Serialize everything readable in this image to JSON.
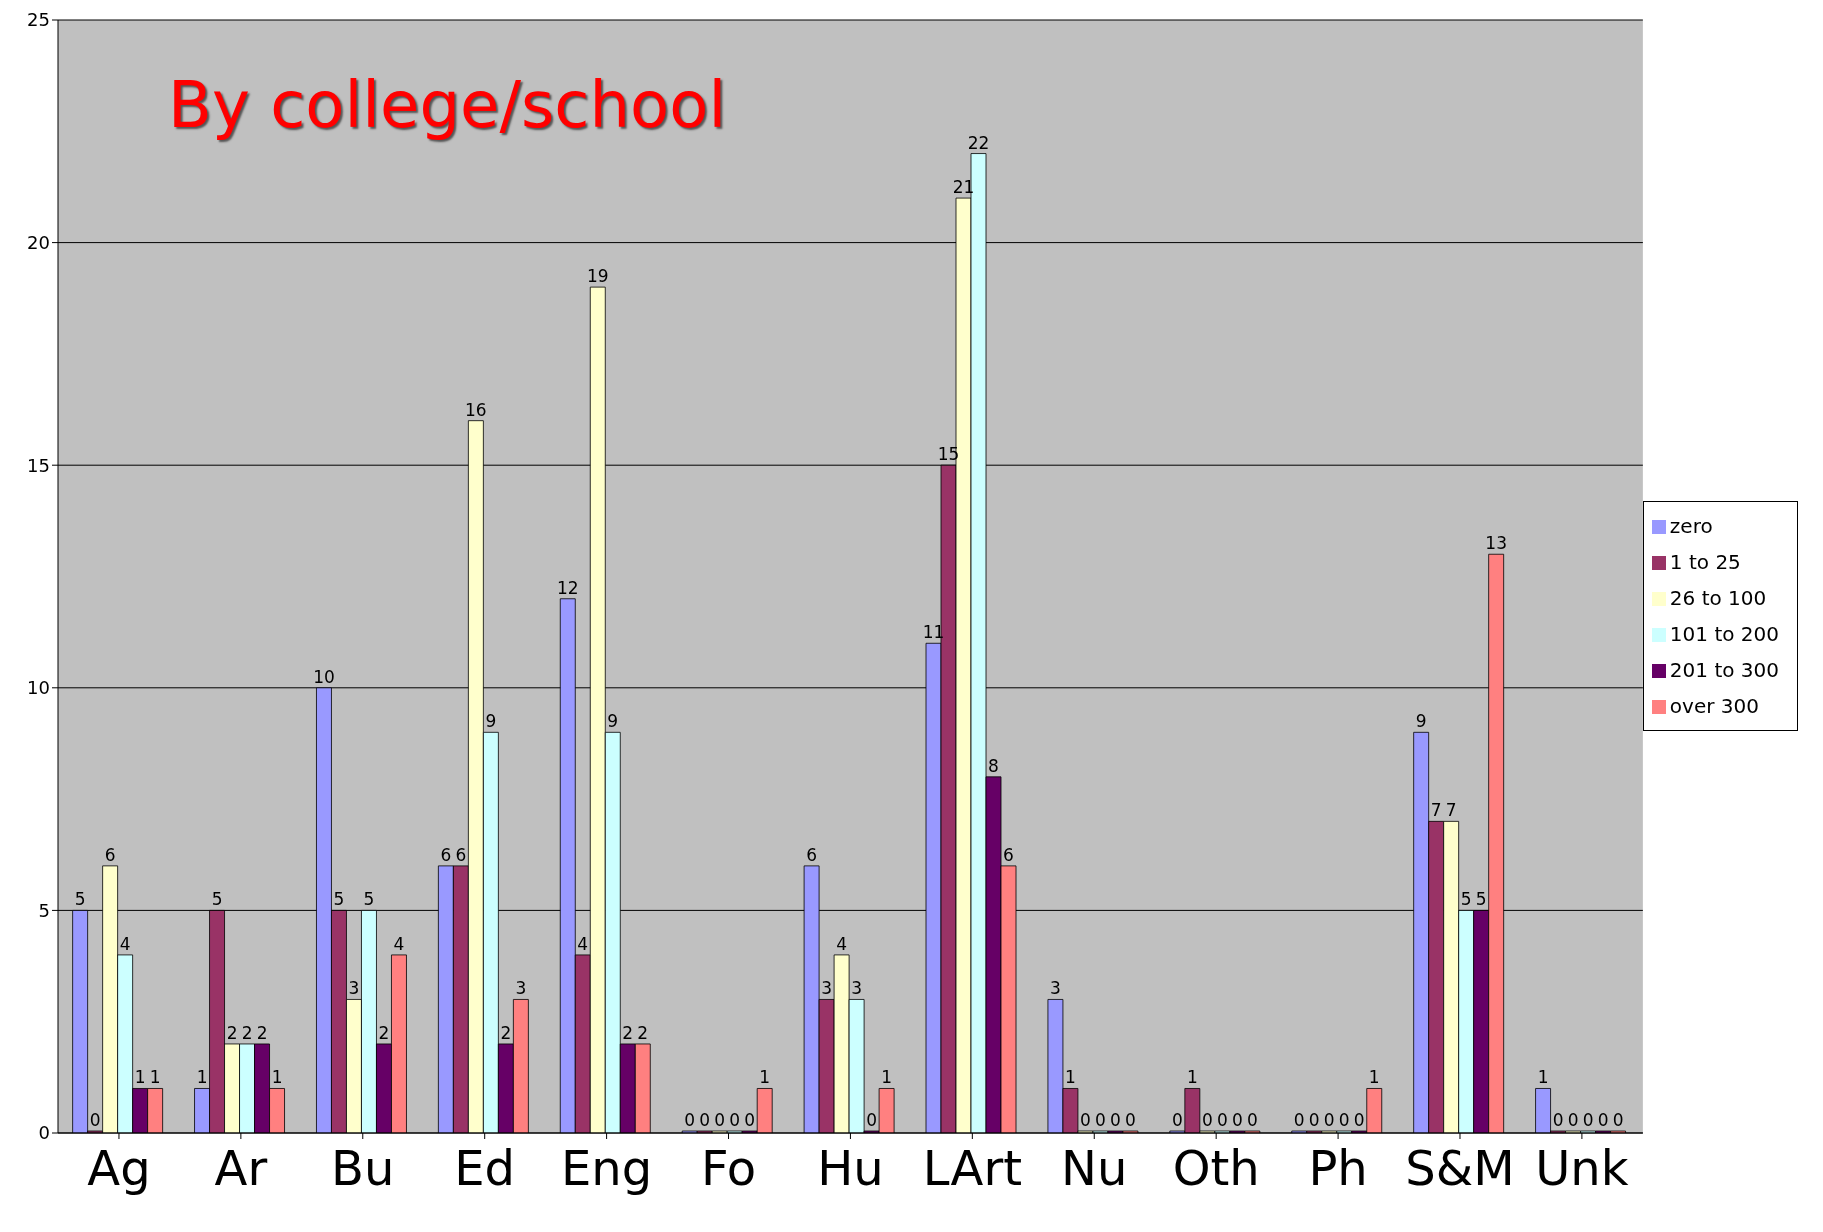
{
  "chart_data": {
    "type": "bar",
    "title": "By college/school",
    "categories": [
      "Ag",
      "Ar",
      "Bu",
      "Ed",
      "Eng",
      "Fo",
      "Hu",
      "LArt",
      "Nu",
      "Oth",
      "Ph",
      "S&M",
      "Unk"
    ],
    "series": [
      {
        "name": "zero",
        "color": "#9999ff",
        "values": [
          5,
          1,
          10,
          6,
          12,
          0,
          6,
          11,
          3,
          0,
          0,
          9,
          1
        ]
      },
      {
        "name": "1 to 25",
        "color": "#993366",
        "values": [
          0,
          5,
          5,
          6,
          4,
          0,
          3,
          15,
          1,
          1,
          0,
          7,
          0
        ]
      },
      {
        "name": "26 to 100",
        "color": "#ffffcc",
        "values": [
          6,
          2,
          3,
          16,
          19,
          0,
          4,
          21,
          0,
          0,
          0,
          7,
          0
        ]
      },
      {
        "name": "101 to 200",
        "color": "#ccffff",
        "values": [
          4,
          2,
          5,
          9,
          9,
          0,
          3,
          22,
          0,
          0,
          0,
          5,
          0
        ]
      },
      {
        "name": "201 to 300",
        "color": "#660066",
        "values": [
          1,
          2,
          2,
          2,
          2,
          0,
          0,
          8,
          0,
          0,
          0,
          5,
          0
        ]
      },
      {
        "name": "over 300",
        "color": "#ff8080",
        "values": [
          1,
          1,
          4,
          3,
          2,
          1,
          1,
          6,
          0,
          0,
          1,
          13,
          0
        ]
      }
    ],
    "ylim": [
      0,
      25
    ],
    "yticks": [
      0,
      5,
      10,
      15,
      20,
      25
    ],
    "grid": "y",
    "legend": "right",
    "data_labels": true
  }
}
